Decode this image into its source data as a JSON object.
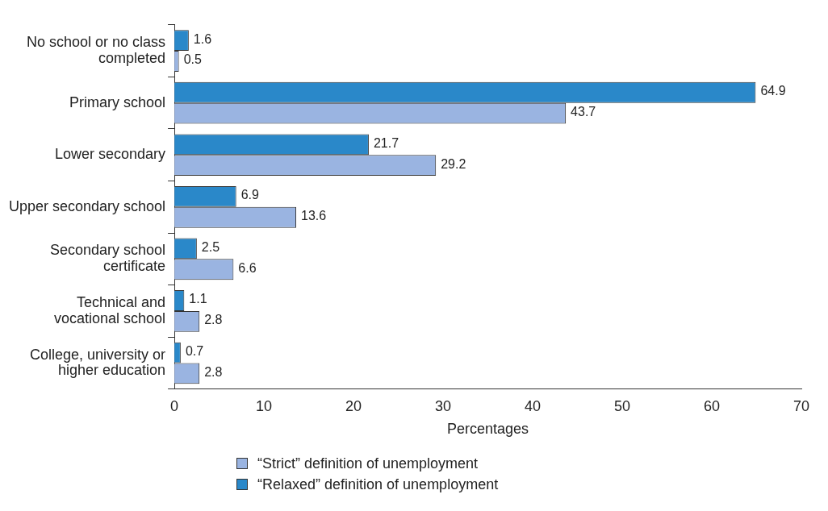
{
  "chart_data": {
    "type": "bar",
    "orientation": "horizontal",
    "xlabel": "Percentages",
    "categories": [
      "No school or no class completed",
      "Primary school",
      "Lower secondary",
      "Upper secondary school",
      "Secondary school certificate",
      "Technical and vocational school",
      "College, university or higher education"
    ],
    "series": [
      {
        "name": "“Relaxed” definition of unemployment",
        "color": "#2a88c9",
        "values": [
          1.6,
          64.9,
          21.7,
          6.9,
          2.5,
          1.1,
          0.7
        ]
      },
      {
        "name": "“Strict” definition of unemployment",
        "color": "#9ab4e1",
        "values": [
          0.5,
          43.7,
          29.2,
          13.6,
          6.6,
          2.8,
          2.8
        ]
      }
    ],
    "xlim": [
      0,
      70
    ],
    "xticks": [
      0,
      10,
      20,
      30,
      40,
      50,
      60,
      70
    ],
    "data_labels": true,
    "grid": false,
    "legend": "bottom"
  }
}
